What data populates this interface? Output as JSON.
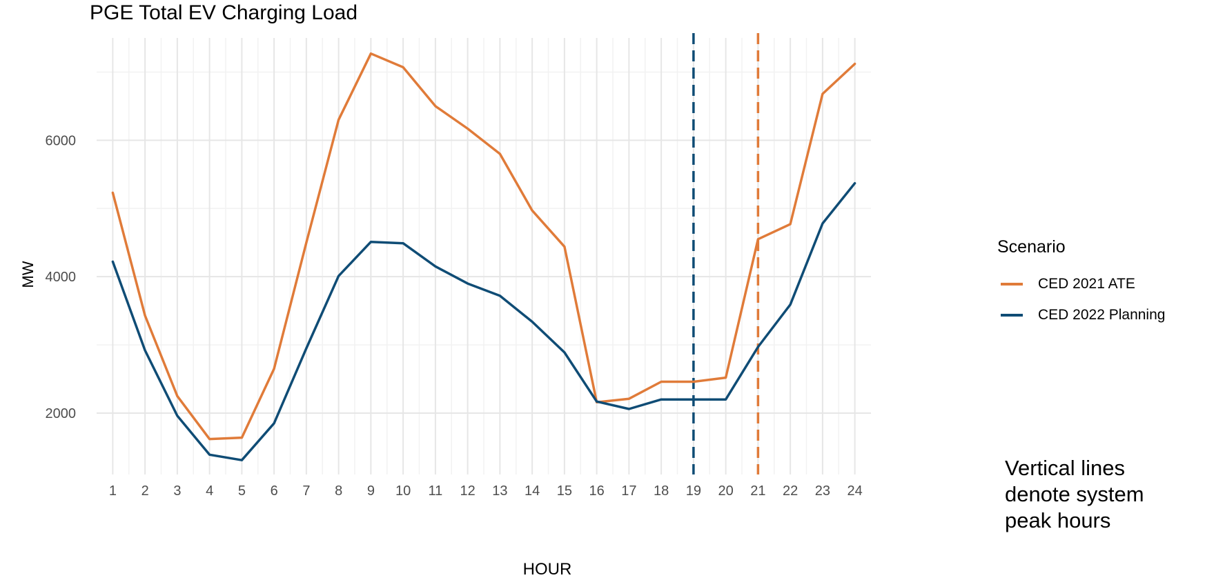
{
  "chart_data": {
    "type": "line",
    "title": "PGE Total EV Charging Load",
    "xlabel": "HOUR",
    "ylabel": "MW",
    "x": [
      1,
      2,
      3,
      4,
      5,
      6,
      7,
      8,
      9,
      10,
      11,
      12,
      13,
      14,
      15,
      16,
      17,
      18,
      19,
      20,
      21,
      22,
      23,
      24
    ],
    "xlim": [
      0.5,
      24.5
    ],
    "ylim": [
      1100,
      7500
    ],
    "yticks": [
      2000,
      4000,
      6000
    ],
    "grid": true,
    "legend": {
      "title": "Scenario",
      "position": "right"
    },
    "series": [
      {
        "name": "CED 2021 ATE",
        "color": "#E07B39",
        "values": [
          5230,
          3430,
          2250,
          1620,
          1640,
          2650,
          4500,
          6300,
          7270,
          7070,
          6500,
          6170,
          5800,
          4970,
          4440,
          2160,
          2210,
          2460,
          2460,
          2520,
          4550,
          4770,
          6680,
          7120
        ]
      },
      {
        "name": "CED 2022 Planning",
        "color": "#0F4C75",
        "values": [
          4220,
          2920,
          1960,
          1390,
          1310,
          1850,
          2950,
          4010,
          4510,
          4490,
          4150,
          3900,
          3720,
          3340,
          2890,
          2170,
          2060,
          2200,
          2200,
          2200,
          2970,
          3590,
          4780,
          5370
        ]
      }
    ],
    "vlines": [
      {
        "x": 19,
        "color": "#0F4C75",
        "style": "dashed"
      },
      {
        "x": 21,
        "color": "#E07B39",
        "style": "dashed"
      }
    ],
    "annotation": [
      "Vertical lines",
      "denote system",
      "peak hours"
    ]
  }
}
